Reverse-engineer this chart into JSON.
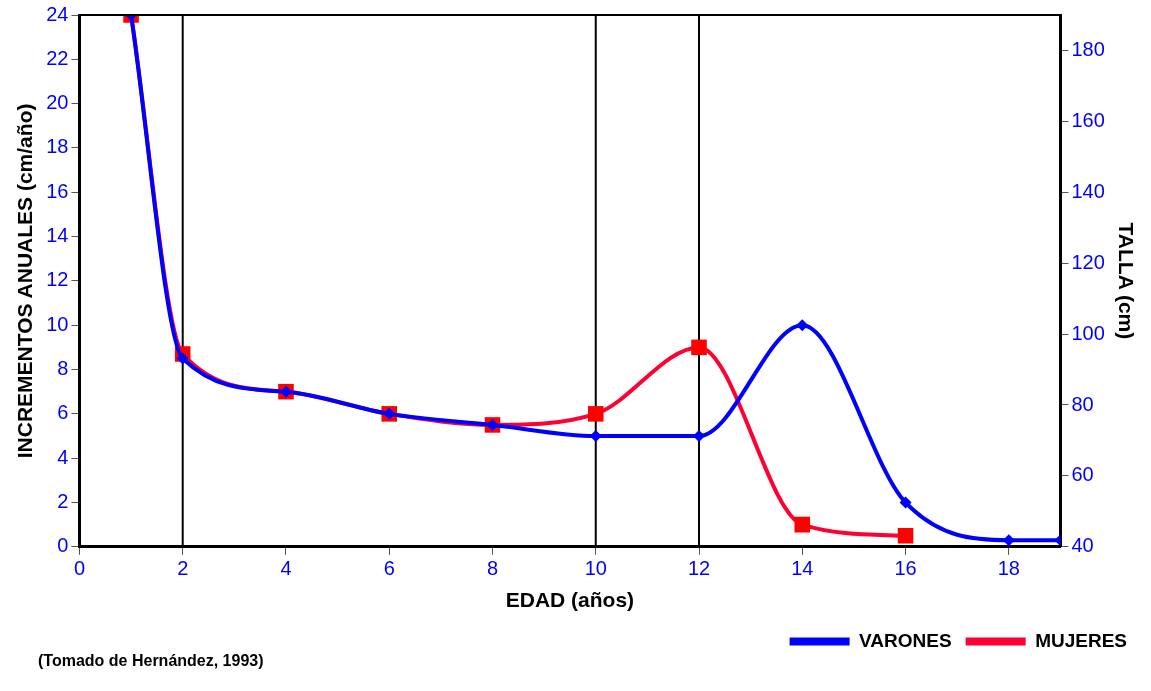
{
  "chart_data": {
    "type": "line",
    "xlabel": "EDAD (años)",
    "ylabel": "INCREMENTOS ANUALES (cm/año)",
    "y2label": "TALLA (cm)",
    "series": [
      {
        "name": "VARONES",
        "color": "#0000ff",
        "marker": "diamond",
        "x": [
          1,
          2,
          4,
          6,
          8,
          10,
          12,
          14,
          16,
          18,
          19
        ],
        "values": [
          24,
          8.5,
          7,
          6,
          5.5,
          5,
          5,
          10,
          2,
          0.3,
          0.3
        ]
      },
      {
        "name": "MUJERES",
        "color": "#ff0033",
        "marker": "square",
        "x": [
          1,
          2,
          4,
          6,
          8,
          10,
          12,
          14,
          16
        ],
        "values": [
          24,
          8.7,
          7,
          6,
          5.5,
          6,
          9,
          1,
          0.5
        ]
      }
    ],
    "xlim": [
      0,
      19
    ],
    "xticks": [
      0,
      2,
      4,
      6,
      8,
      10,
      12,
      14,
      16,
      18
    ],
    "ylim": [
      0,
      24
    ],
    "yticks": [
      0,
      2,
      4,
      6,
      8,
      10,
      12,
      14,
      16,
      18,
      20,
      22,
      24
    ],
    "y2lim": [
      40,
      190
    ],
    "y2ticks": [
      40,
      60,
      80,
      100,
      120,
      140,
      160,
      180
    ],
    "ref_lines": [
      {
        "axis": "x",
        "value": 2,
        "color": "#000000"
      },
      {
        "axis": "x",
        "value": 10,
        "color": "#000000"
      },
      {
        "axis": "x",
        "value": 12,
        "color": "#000000"
      }
    ],
    "grid": false,
    "legend": "bottom right",
    "annotations": [
      "(Tomado de Hernández, 1993)"
    ]
  }
}
